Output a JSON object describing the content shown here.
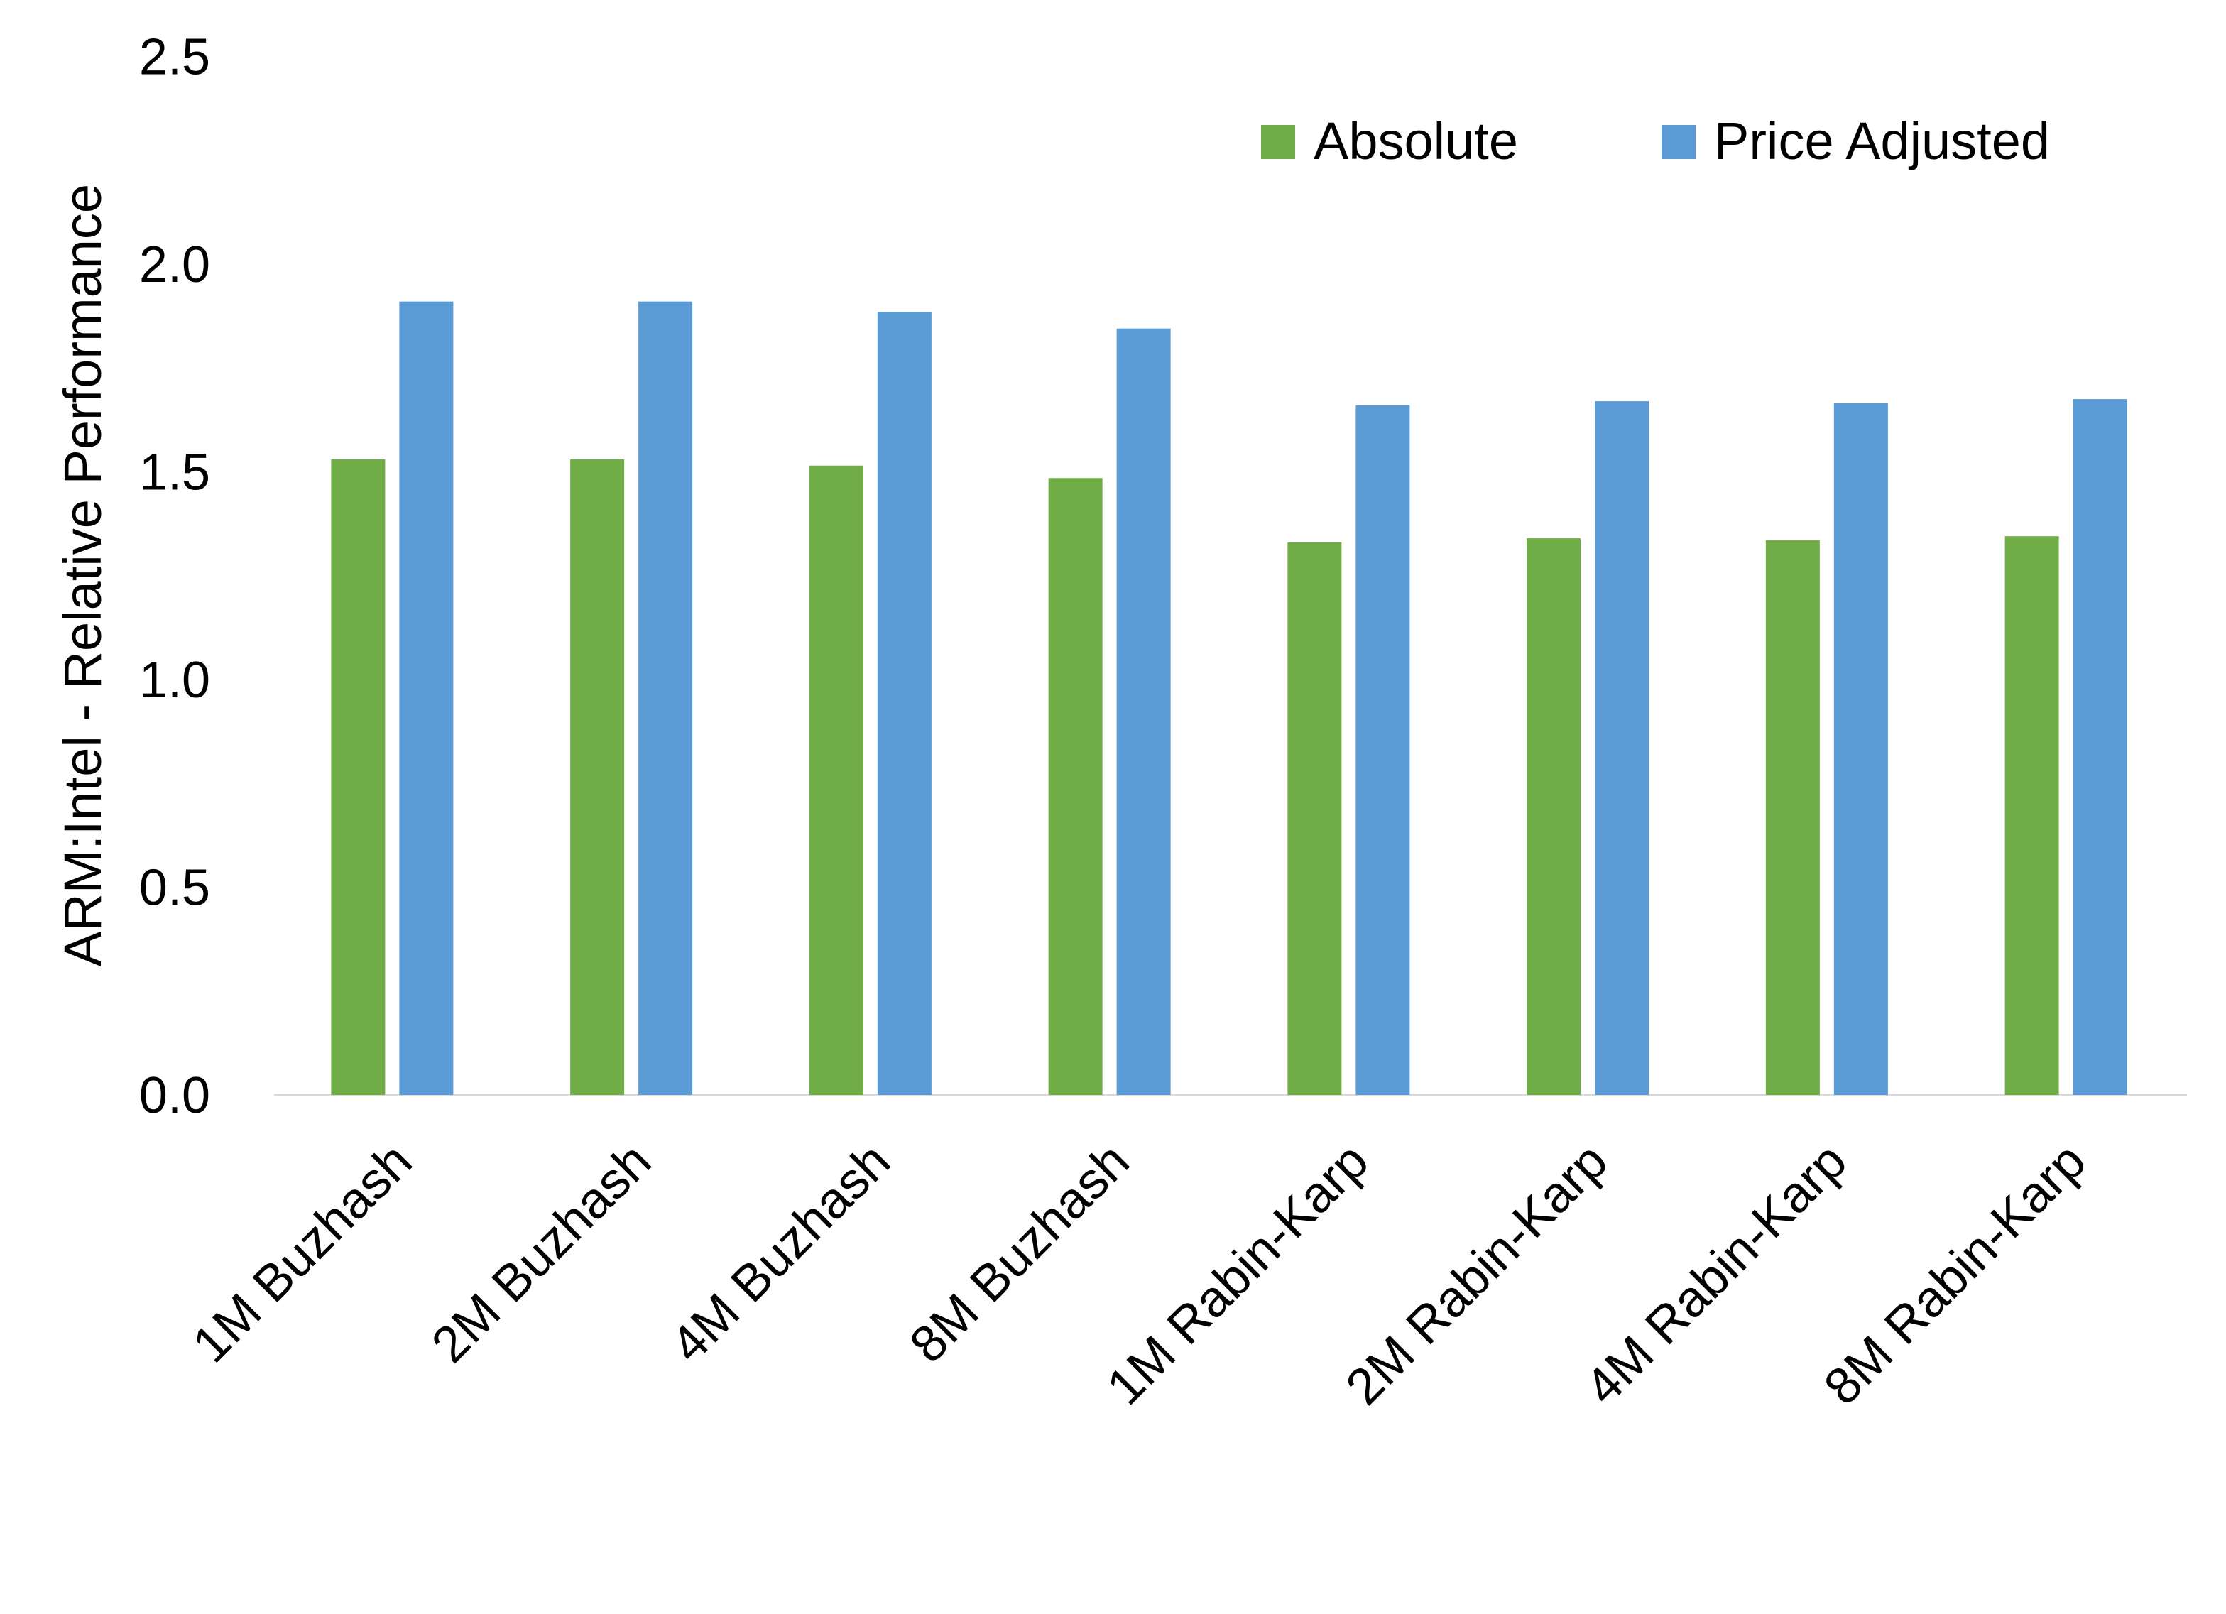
{
  "chart_data": {
    "type": "bar",
    "title": "",
    "xlabel": "",
    "ylabel": "ARM:Intel - Relative Performance",
    "ylim": [
      0,
      2.5
    ],
    "yticks": [
      "0.0",
      "0.5",
      "1.0",
      "1.5",
      "2.0",
      "2.5"
    ],
    "grid": false,
    "legend_position": "top-right",
    "categories": [
      "1M Buzhash",
      "2M Buzhash",
      "4M Buzhash",
      "8M Buzhash",
      "1M Rabin-Karp",
      "2M Rabin-Karp",
      "4M Rabin-Karp",
      "8M Rabin-Karp"
    ],
    "series": [
      {
        "name": "Absolute",
        "color": "#70AD47",
        "values": [
          1.53,
          1.53,
          1.515,
          1.485,
          1.33,
          1.34,
          1.335,
          1.345
        ]
      },
      {
        "name": "Price Adjusted",
        "color": "#5B9BD5",
        "values": [
          1.91,
          1.91,
          1.885,
          1.845,
          1.66,
          1.67,
          1.665,
          1.675
        ]
      }
    ]
  }
}
